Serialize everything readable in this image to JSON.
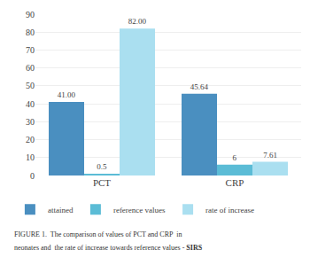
{
  "chart_data": {
    "type": "bar",
    "categories": [
      "PCT",
      "CRP"
    ],
    "series": [
      {
        "name": "attained",
        "color": "#4a8fc0",
        "values": [
          41.0,
          45.64
        ],
        "value_labels": [
          "41.00",
          "45.64"
        ]
      },
      {
        "name": "reference values",
        "color": "#5bbcd6",
        "values": [
          0.5,
          6
        ],
        "value_labels": [
          "0.5",
          "6"
        ]
      },
      {
        "name": "rate of increase",
        "color": "#aadff0",
        "values": [
          82.0,
          7.61
        ],
        "value_labels": [
          "82.00",
          "7.61"
        ]
      }
    ],
    "ylim": [
      0,
      90
    ],
    "yticks": [
      0,
      10,
      20,
      30,
      40,
      50,
      60,
      70,
      80,
      90
    ],
    "grid": true,
    "legend": "bottom",
    "data_labels": true,
    "annotations": [
      "FIGURE 1.  The comparison of values of PCT and CRP  in",
      "neonates and  the rate of increase towards reference values -",
      "SIRS"
    ]
  }
}
